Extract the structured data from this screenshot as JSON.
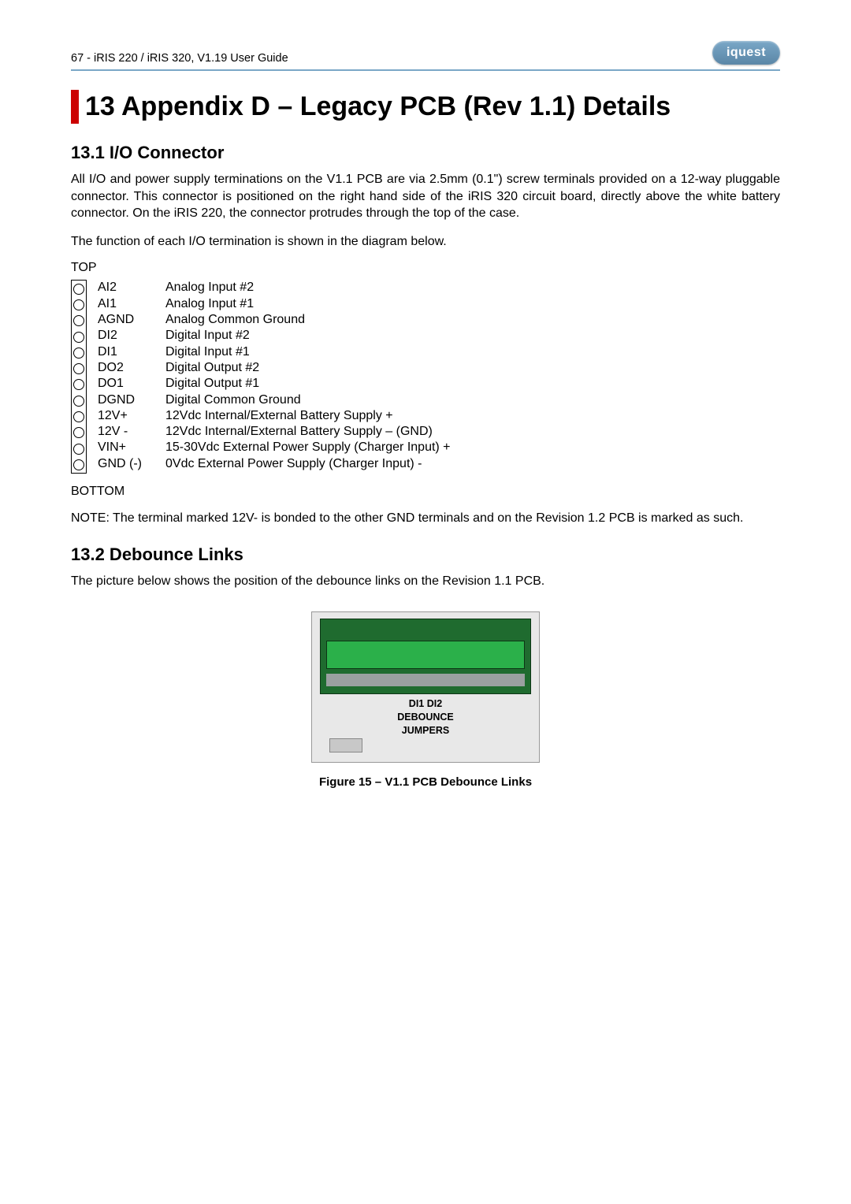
{
  "header": {
    "left": "67 - iRIS 220 / iRIS 320, V1.19 User Guide",
    "brand": "iquest"
  },
  "colors": {
    "rule": "#7aa7c7",
    "accent_bar": "#cc0000",
    "text": "#000000",
    "background": "#ffffff",
    "pcb_dark_green": "#1f6b2f",
    "pcb_light_green": "#2bb04a"
  },
  "h1": "13 Appendix D – Legacy PCB (Rev 1.1) Details",
  "sections": {
    "io": {
      "heading": "13.1 I/O Connector",
      "p1": "All I/O and power supply terminations on the V1.1 PCB are via 2.5mm (0.1\") screw terminals provided on a 12-way pluggable connector.  This connector is positioned on the right hand side of the iRIS 320 circuit board, directly above the white battery connector.  On the iRIS 220, the connector protrudes through the top of the case.",
      "p2": "The function of each I/O termination is shown in the diagram below.",
      "top_label": "TOP",
      "bottom_label": "BOTTOM",
      "note": "NOTE: The terminal marked 12V- is bonded to the other GND terminals and on the Revision 1.2 PCB is marked as such.",
      "terminals": [
        {
          "sig": "AI2",
          "desc": "Analog Input #2"
        },
        {
          "sig": "AI1",
          "desc": "Analog Input #1"
        },
        {
          "sig": "AGND",
          "desc": "Analog Common Ground"
        },
        {
          "sig": "DI2",
          "desc": "Digital Input #2"
        },
        {
          "sig": "DI1",
          "desc": "Digital Input #1"
        },
        {
          "sig": "DO2",
          "desc": "Digital Output #2"
        },
        {
          "sig": "DO1",
          "desc": "Digital Output #1"
        },
        {
          "sig": "DGND",
          "desc": "Digital Common Ground"
        },
        {
          "sig": "12V+",
          "desc": "12Vdc Internal/External Battery Supply +"
        },
        {
          "sig": "12V -",
          "desc": "12Vdc Internal/External Battery Supply – (GND)"
        },
        {
          "sig": "VIN+",
          "desc": "15-30Vdc External Power Supply (Charger Input) +"
        },
        {
          "sig": "GND (-)",
          "desc": "0Vdc External Power Supply (Charger Input) -"
        }
      ]
    },
    "debounce": {
      "heading": "13.2 Debounce Links",
      "p1": "The picture below shows the position of the debounce links on the Revision 1.1 PCB.",
      "photo_line1": "DI1    DI2",
      "photo_line2": "DEBOUNCE",
      "photo_line3": "JUMPERS",
      "caption": "Figure 15 – V1.1 PCB Debounce Links"
    }
  }
}
